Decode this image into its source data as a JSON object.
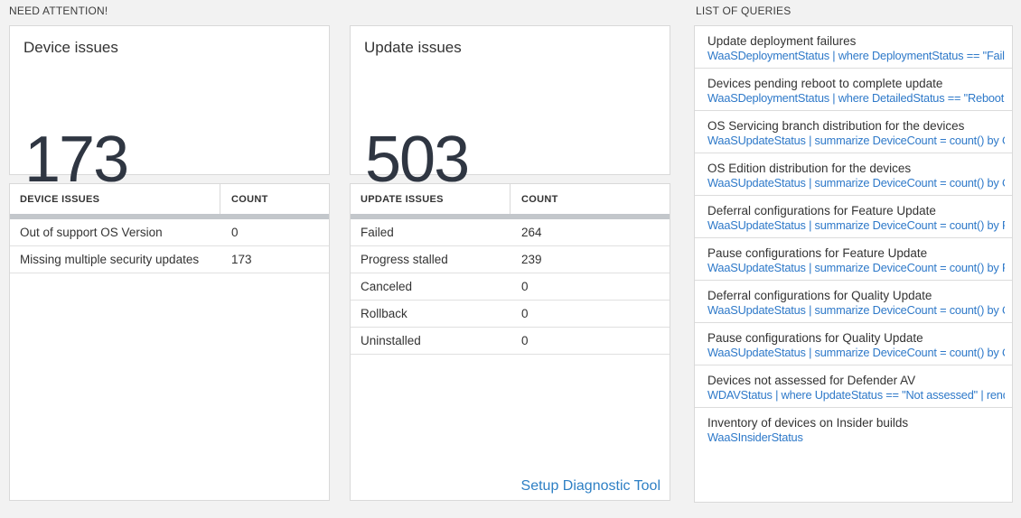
{
  "sections": {
    "need_attention": "NEED ATTENTION!",
    "list_of_queries": "LIST OF QUERIES"
  },
  "device_tile": {
    "title": "Device issues",
    "count": "173"
  },
  "update_tile": {
    "title": "Update issues",
    "count": "503"
  },
  "device_table": {
    "headers": {
      "issue": "DEVICE ISSUES",
      "count": "COUNT"
    },
    "rows": [
      {
        "label": "Out of support OS Version",
        "count": "0"
      },
      {
        "label": "Missing multiple security updates",
        "count": "173"
      }
    ]
  },
  "update_table": {
    "headers": {
      "issue": "UPDATE ISSUES",
      "count": "COUNT"
    },
    "rows": [
      {
        "label": "Failed",
        "count": "264"
      },
      {
        "label": "Progress stalled",
        "count": "239"
      },
      {
        "label": "Canceled",
        "count": "0"
      },
      {
        "label": "Rollback",
        "count": "0"
      },
      {
        "label": "Uninstalled",
        "count": "0"
      }
    ],
    "link_label": "Setup Diagnostic Tool"
  },
  "queries": {
    "items": [
      {
        "title": "Update deployment failures",
        "query": "WaaSDeploymentStatus | where DeploymentStatus == \"Failed\" |..."
      },
      {
        "title": "Devices pending reboot to complete update",
        "query": "WaaSDeploymentStatus | where DetailedStatus == \"Reboot pend..."
      },
      {
        "title": "OS Servicing branch distribution for the devices",
        "query": "WaaSUpdateStatus | summarize DeviceCount = count() by OSSer..."
      },
      {
        "title": "OS Edition distribution for the devices",
        "query": "WaaSUpdateStatus | summarize DeviceCount = count() by OSEdit..."
      },
      {
        "title": "Deferral configurations for Feature Update",
        "query": "WaaSUpdateStatus | summarize DeviceCount = count() by Featur..."
      },
      {
        "title": "Pause configurations for Feature Update",
        "query": "WaaSUpdateStatus | summarize DeviceCount = count() by Featur..."
      },
      {
        "title": "Deferral configurations for Quality Update",
        "query": "WaaSUpdateStatus | summarize DeviceCount = count() by Qualit..."
      },
      {
        "title": "Pause configurations for Quality Update",
        "query": "WaaSUpdateStatus | summarize DeviceCount = count() by Qualit..."
      },
      {
        "title": "Devices not assessed for Defender AV",
        "query": "WDAVStatus | where UpdateStatus == \"Not assessed\" | render ta..."
      },
      {
        "title": "Inventory of devices on Insider builds",
        "query": "WaaSInsiderStatus"
      }
    ]
  },
  "colors": {
    "background": "#f2f2f2",
    "panel_border": "#d9d9d9",
    "header_bar": "#c3c7cb",
    "number_text": "#2f3642",
    "query_blue": "#2e79c9",
    "link_blue": "#2d7fc4"
  }
}
